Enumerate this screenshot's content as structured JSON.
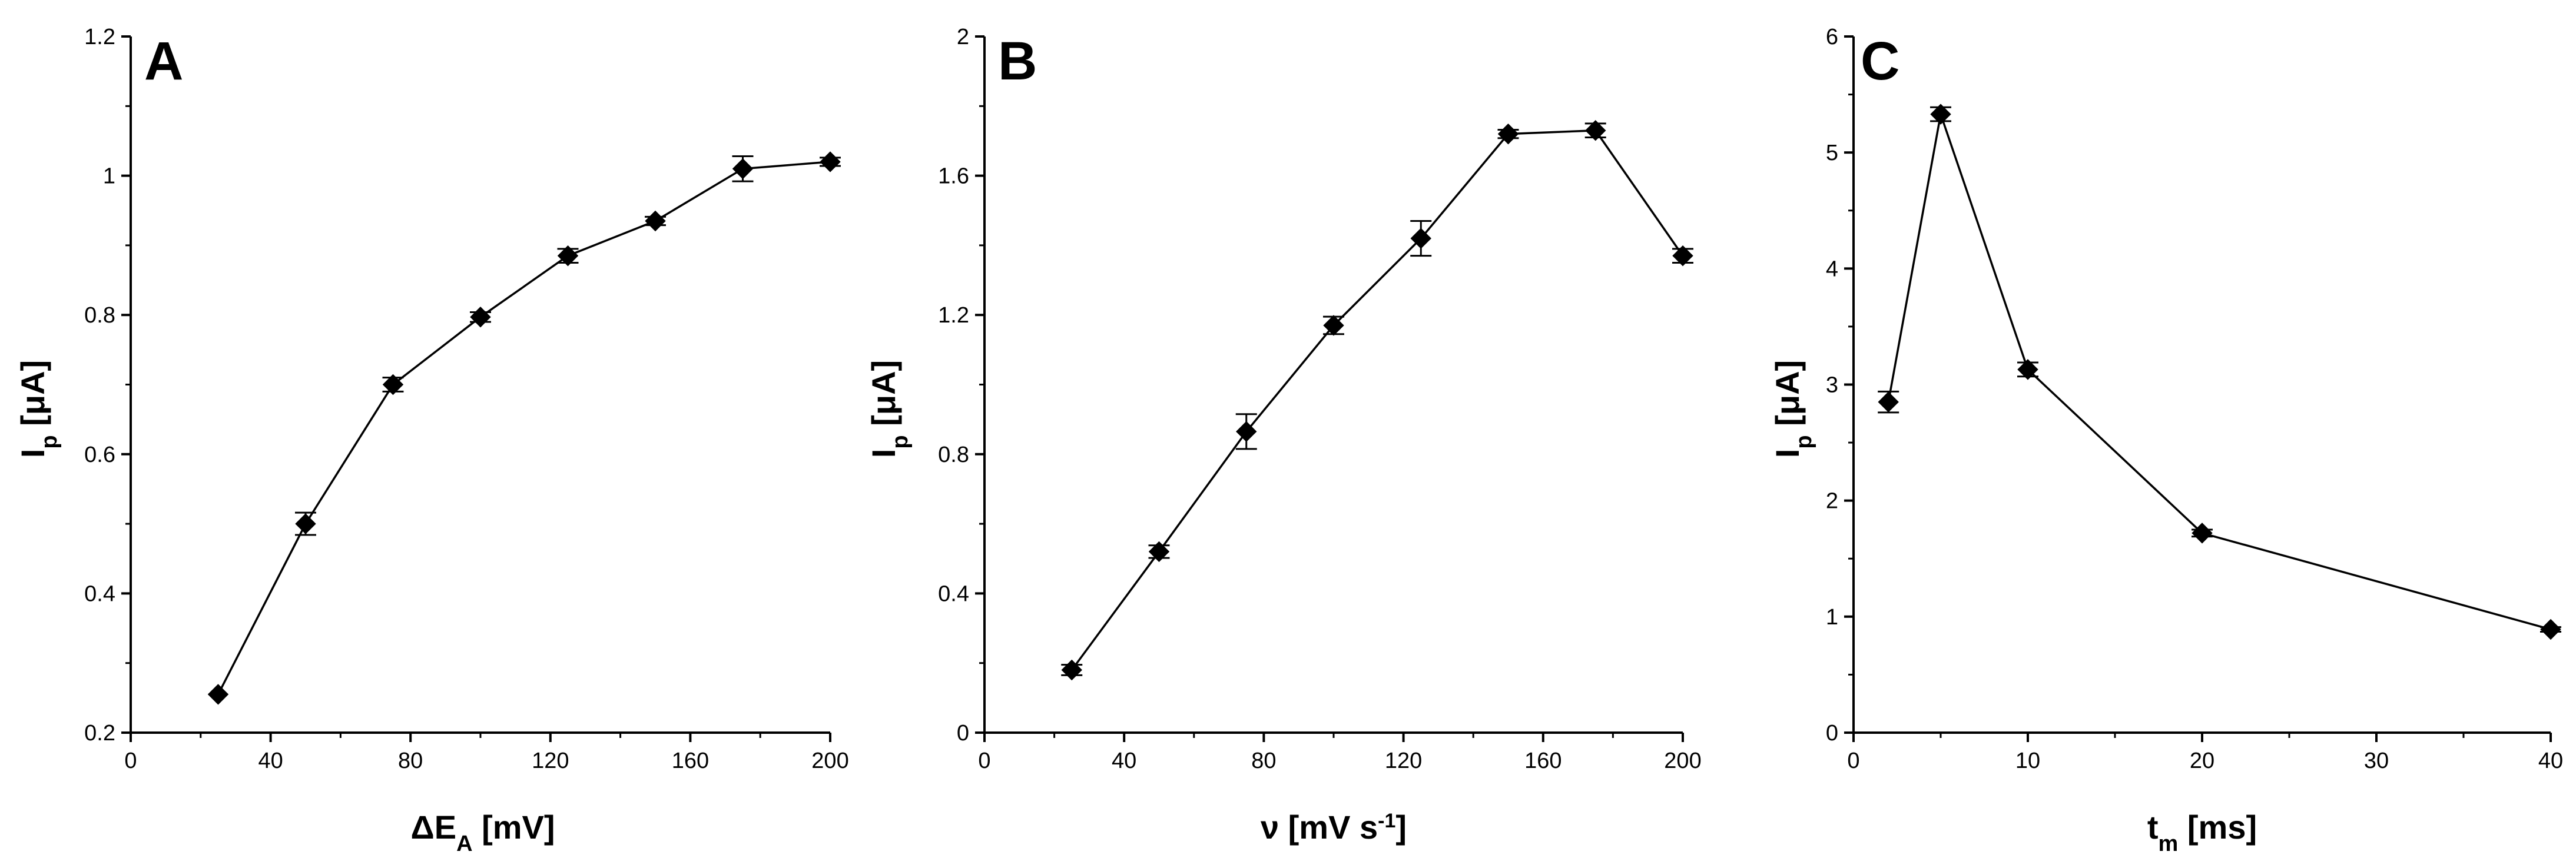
{
  "chart_data": [
    {
      "type": "line",
      "panel": "A",
      "title": "",
      "xlabel": "ΔE_A [mV]",
      "ylabel": "I_p [μA]",
      "xlim": [
        0,
        200
      ],
      "ylim": [
        0.2,
        1.2
      ],
      "xticks": [
        "0",
        "40",
        "80",
        "120",
        "160",
        "200"
      ],
      "yticks": [
        "0.2",
        "0.4",
        "0.6",
        "0.8",
        "1",
        "1.2"
      ],
      "series": [
        {
          "name": "Ip",
          "x": [
            25,
            50,
            75,
            100,
            125,
            150,
            175,
            200
          ],
          "y": [
            0.255,
            0.5,
            0.7,
            0.797,
            0.885,
            0.935,
            1.01,
            1.02
          ],
          "err": [
            0.0,
            0.016,
            0.01,
            0.007,
            0.01,
            0.006,
            0.018,
            0.006
          ]
        }
      ]
    },
    {
      "type": "line",
      "panel": "B",
      "title": "",
      "xlabel": "ν [mV s-1]",
      "ylabel": "I_p [μA]",
      "xlim": [
        0,
        200
      ],
      "ylim": [
        0,
        2
      ],
      "xticks": [
        "0",
        "40",
        "80",
        "120",
        "160",
        "200"
      ],
      "yticks": [
        "0",
        "0.4",
        "0.8",
        "1.2",
        "1.6",
        "2"
      ],
      "series": [
        {
          "name": "Ip",
          "x": [
            25,
            50,
            75,
            100,
            125,
            150,
            175,
            200
          ],
          "y": [
            0.18,
            0.52,
            0.865,
            1.17,
            1.42,
            1.72,
            1.73,
            1.37
          ],
          "err": [
            0.015,
            0.018,
            0.05,
            0.025,
            0.05,
            0.012,
            0.02,
            0.02
          ]
        }
      ]
    },
    {
      "type": "line",
      "panel": "C",
      "title": "",
      "xlabel": "t_m [ms]",
      "ylabel": "I_p [μA]",
      "xlim": [
        0,
        40
      ],
      "ylim": [
        0,
        6
      ],
      "xticks": [
        "0",
        "10",
        "20",
        "30",
        "40"
      ],
      "yticks": [
        "0",
        "1",
        "2",
        "3",
        "4",
        "5",
        "6"
      ],
      "series": [
        {
          "name": "Ip",
          "x": [
            2,
            5,
            10,
            20,
            40
          ],
          "y": [
            2.85,
            5.33,
            3.13,
            1.72,
            0.89
          ],
          "err": [
            0.09,
            0.06,
            0.06,
            0.03,
            0.02
          ]
        }
      ]
    }
  ],
  "labels": {
    "panel_a": "A",
    "panel_b": "B",
    "panel_c": "C",
    "ylabel_main": "I",
    "ylabel_sub": "p",
    "ylabel_unit": " [μA]",
    "xlabel_a_main": "ΔE",
    "xlabel_a_sub": "A",
    "xlabel_a_unit": " [mV]",
    "xlabel_b_main": "ν [mV s",
    "xlabel_b_sup": "-1",
    "xlabel_b_end": "]",
    "xlabel_c_main": "t",
    "xlabel_c_sub": "m",
    "xlabel_c_unit": " [ms]"
  }
}
